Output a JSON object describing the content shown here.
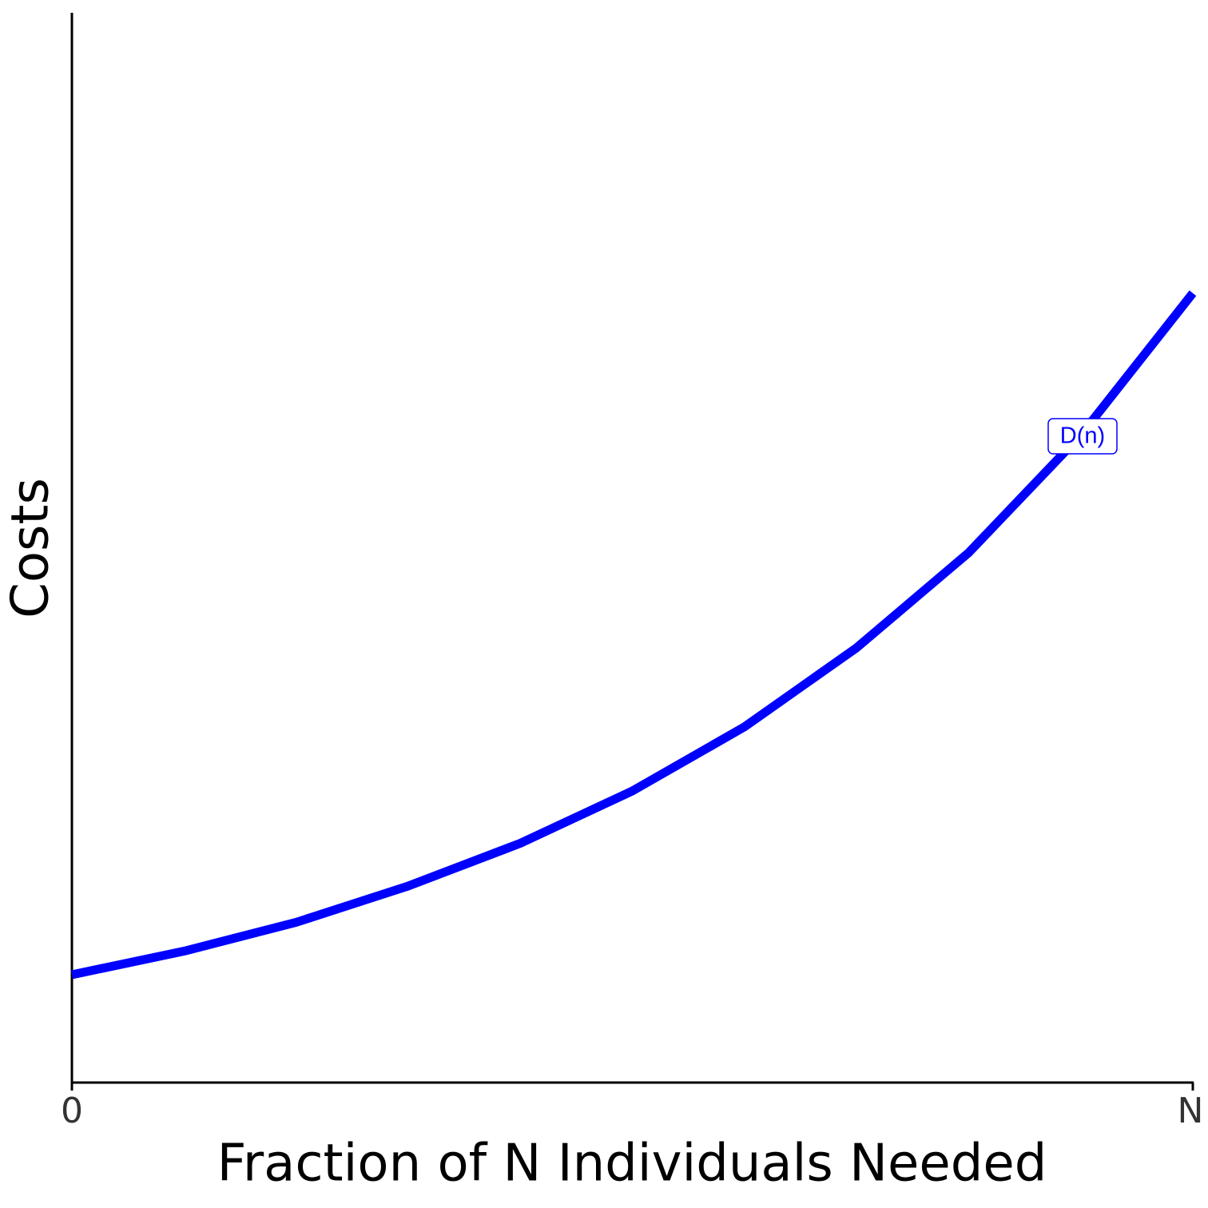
{
  "chart_data": {
    "type": "line",
    "xlabel": "Fraction of N Individuals Needed",
    "ylabel": "Costs",
    "x": [
      0,
      0.1,
      0.2,
      0.3,
      0.4,
      0.5,
      0.6,
      0.7,
      0.8,
      0.9,
      1
    ],
    "series": [
      {
        "name": "D(n)",
        "color": "#0000ff",
        "values": [
          1.01,
          1.23,
          1.5,
          1.84,
          2.24,
          2.73,
          3.33,
          4.07,
          4.96,
          6.06,
          7.39
        ]
      }
    ],
    "xlim": [
      0,
      1
    ],
    "xticks": [
      0,
      {
        "value": 1,
        "label": "N"
      }
    ],
    "ylim": [
      0,
      10
    ]
  }
}
